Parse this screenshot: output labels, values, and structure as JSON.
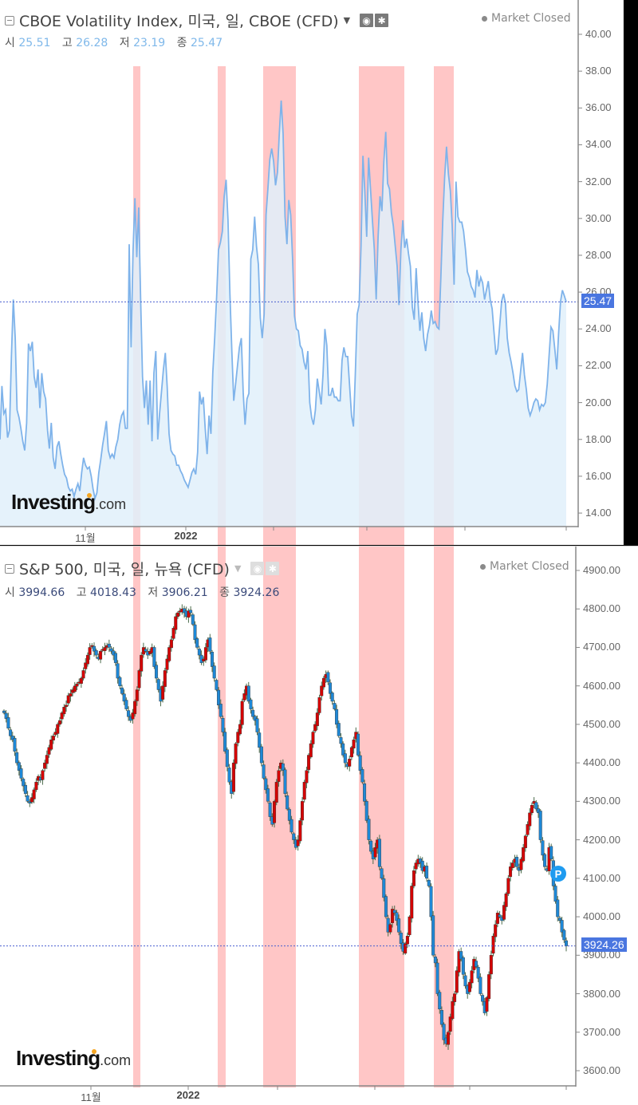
{
  "vix": {
    "title": "CBOE Volatility Index, 미국, 일, CBOE (CFD)",
    "ohlc": [
      {
        "label": "시",
        "value": "25.51"
      },
      {
        "label": "고",
        "value": "26.28"
      },
      {
        "label": "저",
        "value": "23.19"
      },
      {
        "label": "종",
        "value": "25.47"
      }
    ],
    "status": "Market Closed",
    "last_price": "25.47",
    "y_ticks": [
      "40.00",
      "38.00",
      "36.00",
      "34.00",
      "32.00",
      "30.00",
      "28.00",
      "26.00",
      "24.00",
      "22.00",
      "20.00",
      "18.00",
      "16.00",
      "14.00"
    ],
    "x_labels": [
      {
        "text": "11월",
        "x": 107,
        "bold": false
      },
      {
        "text": "2022",
        "x": 233,
        "bold": true
      }
    ],
    "x_ticks": [
      107,
      233,
      343,
      460,
      583,
      710
    ]
  },
  "spx": {
    "title": "S&P 500, 미국, 일, 뉴욕 (CFD)",
    "ohlc": [
      {
        "label": "시",
        "value": "3994.66"
      },
      {
        "label": "고",
        "value": "4018.43"
      },
      {
        "label": "저",
        "value": "3906.21"
      },
      {
        "label": "종",
        "value": "3924.26"
      }
    ],
    "status": "Market Closed",
    "last_price": "3924.26",
    "marker": "P",
    "y_ticks": [
      "4900.00",
      "4800.00",
      "4700.00",
      "4600.00",
      "4500.00",
      "4400.00",
      "4300.00",
      "4200.00",
      "4100.00",
      "4000.00",
      "3900.00",
      "3800.00",
      "3700.00",
      "3600.00"
    ],
    "x_labels": [
      {
        "text": "11월",
        "x": 114,
        "bold": false
      },
      {
        "text": "2022",
        "x": 236,
        "bold": true
      }
    ],
    "x_ticks": [
      114,
      236,
      348,
      470,
      589,
      710
    ]
  },
  "logo": {
    "brand": "Investing",
    "suffix": ".com"
  },
  "highlight_bands_x": [
    [
      167,
      176
    ],
    [
      273,
      283
    ],
    [
      330,
      371
    ],
    [
      450,
      507
    ],
    [
      544,
      569
    ]
  ],
  "colors": {
    "vix_line": "#7fb3ea",
    "vix_fill": "#e0f0fa",
    "band": "#ffb3b3",
    "candle_up": "#d40000",
    "candle_down": "#1e88d6",
    "price_tag": "#4a76e0"
  },
  "chart_data": [
    {
      "type": "area",
      "title": "CBOE Volatility Index, 미국, 일, CBOE (CFD)",
      "xlabel": "",
      "ylabel": "",
      "ylim": [
        13.3,
        41.5
      ],
      "x_tick_labels": [
        "11월",
        "2022"
      ],
      "grid": false,
      "values": [
        18.0,
        20.9,
        19.4,
        19.6,
        18.1,
        18.5,
        22.5,
        25.6,
        23.5,
        19.6,
        19.2,
        18.6,
        17.9,
        17.4,
        18.9,
        23.2,
        22.8,
        23.3,
        21.4,
        20.8,
        21.8,
        19.7,
        21.6,
        20.6,
        20.2,
        18.5,
        17.5,
        18.9,
        17.0,
        16.4,
        17.6,
        17.9,
        17.2,
        16.6,
        16.1,
        15.9,
        15.4,
        15.2,
        15.3,
        14.9,
        15.3,
        15.6,
        15.2,
        16.2,
        17.0,
        16.6,
        16.4,
        16.5,
        16.0,
        15.3,
        14.8,
        15.1,
        16.2,
        16.9,
        17.7,
        18.3,
        19.0,
        17.4,
        17.0,
        17.2,
        17.0,
        17.6,
        18.0,
        18.8,
        19.3,
        19.5,
        18.6,
        18.6,
        28.6,
        23.0,
        28.2,
        31.1,
        27.9,
        30.6,
        25.7,
        21.4,
        19.7,
        21.2,
        18.8,
        21.2,
        17.9,
        21.6,
        22.8,
        18.0,
        19.4,
        20.6,
        21.8,
        22.7,
        20.8,
        18.3,
        17.4,
        17.2,
        17.1,
        16.6,
        16.6,
        16.3,
        16.1,
        15.8,
        15.6,
        15.4,
        15.8,
        16.2,
        16.4,
        16.1,
        17.3,
        20.6,
        19.9,
        20.3,
        18.6,
        17.2,
        19.3,
        18.3,
        21.6,
        23.5,
        25.7,
        28.3,
        28.7,
        29.3,
        31.2,
        32.1,
        29.9,
        25.9,
        22.8,
        20.1,
        21.0,
        22.0,
        23.0,
        23.5,
        20.5,
        18.8,
        20.2,
        20.5,
        27.8,
        28.3,
        30.1,
        28.5,
        27.5,
        24.6,
        23.5,
        24.8,
        30.2,
        31.6,
        33.2,
        33.8,
        33.1,
        31.8,
        32.5,
        34.6,
        36.4,
        34.6,
        30.1,
        28.6,
        31.0,
        30.2,
        27.8,
        24.7,
        24.0,
        23.9,
        23.1,
        22.9,
        22.2,
        21.8,
        22.8,
        20.0,
        19.2,
        18.8,
        19.6,
        21.3,
        20.6,
        19.9,
        21.5,
        24.0,
        23.1,
        20.4,
        20.4,
        20.8,
        20.3,
        20.3,
        20.1,
        20.1,
        22.3,
        23.0,
        22.5,
        22.5,
        20.9,
        19.3,
        18.7,
        21.5,
        24.8,
        25.3,
        28.5,
        33.4,
        31.5,
        29.0,
        33.3,
        31.6,
        29.9,
        28.3,
        25.6,
        29.0,
        31.2,
        30.4,
        33.1,
        34.7,
        31.9,
        31.6,
        30.3,
        29.6,
        28.5,
        27.4,
        25.3,
        28.3,
        29.9,
        28.4,
        28.9,
        28.1,
        27.4,
        25.2,
        24.5,
        27.3,
        25.4,
        23.9,
        24.9,
        23.5,
        22.8,
        23.7,
        24.2,
        25.0,
        24.3,
        24.4,
        24.1,
        24.0,
        26.8,
        29.8,
        32.2,
        33.9,
        32.4,
        31.5,
        29.6,
        26.4,
        32.0,
        30.1,
        29.8,
        29.8,
        29.3,
        28.3,
        27.1,
        26.8,
        26.3,
        26.1,
        25.7,
        27.2,
        26.3,
        26.8,
        26.5,
        25.6,
        26.1,
        26.6,
        25.6,
        25.1,
        23.8,
        22.6,
        22.9,
        24.2,
        25.5,
        25.9,
        25.4,
        23.5,
        22.7,
        22.2,
        21.6,
        20.9,
        20.6,
        20.7,
        21.7,
        22.7,
        21.5,
        20.7,
        19.7,
        19.3,
        19.6,
        20.0,
        20.2,
        20.1,
        19.6,
        19.9,
        19.8,
        20.0,
        21.0,
        22.6,
        24.1,
        23.9,
        22.9,
        21.8,
        23.8,
        25.5,
        26.1,
        25.8,
        25.47
      ]
    },
    {
      "type": "candlestick",
      "title": "S&P 500, 미국, 일, 뉴욕 (CFD)",
      "xlabel": "",
      "ylabel": "",
      "ylim": [
        3560,
        4950
      ],
      "x_tick_labels": [
        "11월",
        "2022"
      ],
      "grid": false,
      "closes": [
        4530,
        4515,
        4490,
        4470,
        4460,
        4430,
        4400,
        4380,
        4360,
        4340,
        4320,
        4300,
        4295,
        4310,
        4330,
        4350,
        4365,
        4355,
        4380,
        4400,
        4420,
        4440,
        4460,
        4470,
        4480,
        4500,
        4510,
        4530,
        4545,
        4550,
        4575,
        4580,
        4590,
        4600,
        4605,
        4610,
        4620,
        4640,
        4660,
        4680,
        4700,
        4705,
        4690,
        4680,
        4670,
        4690,
        4695,
        4700,
        4705,
        4700,
        4690,
        4680,
        4660,
        4620,
        4600,
        4580,
        4560,
        4540,
        4520,
        4510,
        4530,
        4560,
        4590,
        4640,
        4680,
        4700,
        4690,
        4680,
        4690,
        4700,
        4650,
        4620,
        4590,
        4560,
        4600,
        4640,
        4670,
        4700,
        4720,
        4750,
        4780,
        4790,
        4795,
        4800,
        4790,
        4780,
        4795,
        4790,
        4760,
        4720,
        4700,
        4680,
        4660,
        4670,
        4700,
        4720,
        4690,
        4650,
        4620,
        4590,
        4550,
        4520,
        4480,
        4430,
        4390,
        4350,
        4320,
        4400,
        4450,
        4480,
        4500,
        4560,
        4580,
        4600,
        4560,
        4540,
        4520,
        4510,
        4480,
        4440,
        4400,
        4360,
        4330,
        4300,
        4260,
        4240,
        4300,
        4350,
        4380,
        4400,
        4380,
        4320,
        4280,
        4250,
        4220,
        4200,
        4180,
        4200,
        4250,
        4300,
        4350,
        4380,
        4420,
        4450,
        4480,
        4500,
        4530,
        4570,
        4600,
        4620,
        4630,
        4610,
        4580,
        4560,
        4540,
        4500,
        4470,
        4450,
        4420,
        4400,
        4390,
        4410,
        4440,
        4460,
        4480,
        4420,
        4380,
        4350,
        4300,
        4250,
        4200,
        4170,
        4150,
        4180,
        4200,
        4130,
        4100,
        4050,
        4000,
        3960,
        3980,
        4020,
        4010,
        3990,
        3960,
        3930,
        3910,
        3930,
        3950,
        4000,
        4080,
        4120,
        4140,
        4150,
        4140,
        4120,
        4130,
        4100,
        4080,
        4000,
        3900,
        3880,
        3800,
        3760,
        3720,
        3680,
        3670,
        3700,
        3740,
        3780,
        3800,
        3860,
        3910,
        3890,
        3850,
        3820,
        3800,
        3830,
        3860,
        3890,
        3870,
        3840,
        3800,
        3780,
        3750,
        3790,
        3850,
        3900,
        3950,
        3980,
        4010,
        4000,
        3990,
        4030,
        4060,
        4100,
        4130,
        4140,
        4150,
        4130,
        4120,
        4150,
        4180,
        4210,
        4240,
        4270,
        4290,
        4300,
        4280,
        4270,
        4200,
        4160,
        4130,
        4120,
        4180,
        4150,
        4080,
        4040,
        4000,
        3990,
        3960,
        3940,
        3924.26
      ]
    }
  ]
}
